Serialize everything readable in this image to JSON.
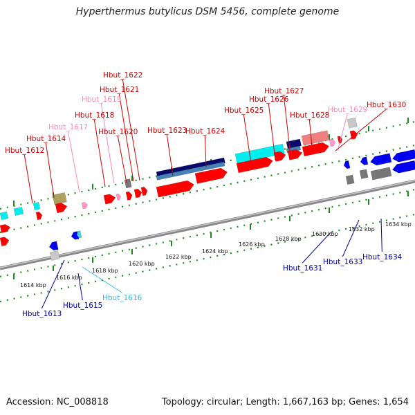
{
  "title": "Hyperthermus butylicus DSM 5456, complete genome",
  "accession": "Accession: NC_008818",
  "summary": "Topology: circular; Length: 1,667,163 bp; Genes: 1,654",
  "colors": {
    "forward": "#ff0000",
    "forward_light": "#ff99cc",
    "reverse": "#0000ee",
    "reverse_light": "#44ccee",
    "rna": "#00eeee",
    "dark": "#0a0a6a",
    "steel": "#4682b4",
    "grey": "#777777",
    "olive": "#b0a060",
    "salmon": "#f08080",
    "tick": "#1a8a1a",
    "label_red": "#cc0000",
    "label_pink": "#ff88bb",
    "label_blue": "#000099",
    "label_cyan": "#33bbdd"
  },
  "scale_labels": [
    "1614 kbp",
    "1616 kbp",
    "1618 kbp",
    "1620 kbp",
    "1622 kbp",
    "1624 kbp",
    "1626 kbp",
    "1628 kbp",
    "1630 kbp",
    "1632 kbp",
    "1634 kbp"
  ],
  "upper_labels": [
    {
      "text": "Hbut_1612",
      "tone": "red"
    },
    {
      "text": "Hbut_1614",
      "tone": "red"
    },
    {
      "text": "Hbut_1617",
      "tone": "pink"
    },
    {
      "text": "Hbut_1618",
      "tone": "red"
    },
    {
      "text": "Hbut_1619",
      "tone": "pink"
    },
    {
      "text": "Hbut_1620",
      "tone": "red"
    },
    {
      "text": "Hbut_1621",
      "tone": "red"
    },
    {
      "text": "Hbut_1622",
      "tone": "red"
    },
    {
      "text": "Hbut_1623",
      "tone": "red"
    },
    {
      "text": "Hbut_1624",
      "tone": "red"
    },
    {
      "text": "Hbut_1625",
      "tone": "red"
    },
    {
      "text": "Hbut_1626",
      "tone": "red"
    },
    {
      "text": "Hbut_1627",
      "tone": "red"
    },
    {
      "text": "Hbut_1628",
      "tone": "red"
    },
    {
      "text": "Hbut_1629",
      "tone": "pink"
    },
    {
      "text": "Hbut_1630",
      "tone": "red"
    }
  ],
  "lower_labels": [
    {
      "text": "Hbut_1613",
      "tone": "blue"
    },
    {
      "text": "Hbut_1615",
      "tone": "blue"
    },
    {
      "text": "Hbut_1616",
      "tone": "cyan"
    },
    {
      "text": "Hbut_1631",
      "tone": "blue"
    },
    {
      "text": "Hbut_1633",
      "tone": "blue"
    },
    {
      "text": "Hbut_1634",
      "tone": "blue"
    }
  ]
}
